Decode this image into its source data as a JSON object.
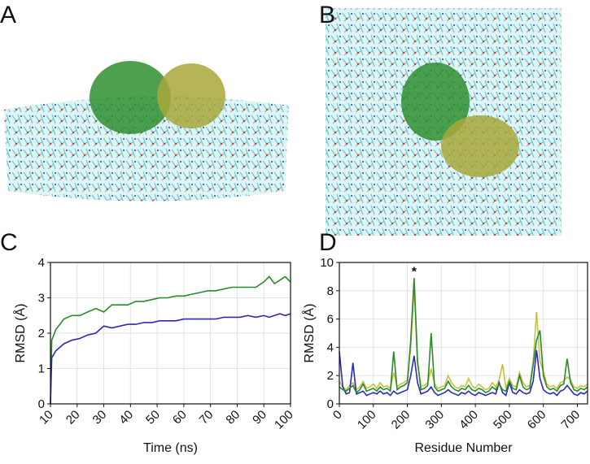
{
  "panel_labels": [
    "A",
    "B",
    "C",
    "D"
  ],
  "chart_data": [
    {
      "type": "line",
      "xlabel": "Time (ns)",
      "ylabel": "RMSD (Å)",
      "xlim": [
        10,
        100
      ],
      "xticks": [
        10,
        20,
        30,
        40,
        50,
        60,
        70,
        80,
        90,
        100
      ],
      "ylim": [
        0,
        4
      ],
      "yticks": [
        0,
        1,
        2,
        3,
        4
      ],
      "grid": true,
      "x": [
        10,
        10.5,
        12,
        15,
        18,
        21,
        24,
        27,
        30,
        33,
        36,
        39,
        42,
        45,
        48,
        51,
        54,
        57,
        60,
        63,
        66,
        69,
        72,
        75,
        78,
        81,
        84,
        87,
        90,
        92,
        94,
        96,
        98,
        100
      ],
      "series": [
        {
          "color": "#2a8a2a",
          "values": [
            0,
            1.8,
            2.1,
            2.4,
            2.5,
            2.5,
            2.6,
            2.7,
            2.6,
            2.8,
            2.8,
            2.8,
            2.9,
            2.9,
            2.95,
            3.0,
            3.0,
            3.05,
            3.05,
            3.1,
            3.15,
            3.2,
            3.2,
            3.25,
            3.3,
            3.3,
            3.3,
            3.3,
            3.45,
            3.6,
            3.4,
            3.5,
            3.6,
            3.45
          ]
        },
        {
          "color": "#2b2bb5",
          "values": [
            0,
            1.3,
            1.5,
            1.7,
            1.8,
            1.85,
            1.95,
            2.0,
            2.2,
            2.15,
            2.2,
            2.25,
            2.25,
            2.3,
            2.3,
            2.35,
            2.35,
            2.35,
            2.4,
            2.4,
            2.4,
            2.4,
            2.4,
            2.45,
            2.45,
            2.45,
            2.5,
            2.45,
            2.5,
            2.45,
            2.5,
            2.55,
            2.5,
            2.55
          ]
        }
      ]
    },
    {
      "type": "line",
      "xlabel": "Residue Number",
      "ylabel": "RMSD (Å)",
      "xlim": [
        0,
        730
      ],
      "xticks": [
        0,
        100,
        200,
        300,
        400,
        500,
        600,
        700
      ],
      "ylim": [
        0,
        10
      ],
      "yticks": [
        0,
        2,
        4,
        6,
        8,
        10
      ],
      "grid": true,
      "annotations": [
        {
          "text": "*",
          "x": 220,
          "y": 9.4
        }
      ],
      "x": [
        0,
        10,
        20,
        30,
        40,
        50,
        60,
        70,
        80,
        90,
        100,
        110,
        120,
        130,
        140,
        150,
        160,
        170,
        180,
        190,
        200,
        210,
        220,
        230,
        240,
        250,
        260,
        270,
        280,
        290,
        300,
        310,
        320,
        330,
        340,
        350,
        360,
        370,
        380,
        390,
        400,
        410,
        420,
        430,
        440,
        450,
        460,
        470,
        480,
        490,
        500,
        510,
        520,
        530,
        540,
        550,
        560,
        570,
        580,
        590,
        600,
        610,
        620,
        630,
        640,
        650,
        660,
        670,
        680,
        690,
        700,
        710,
        720,
        730
      ],
      "series": [
        {
          "color": "#c2c243",
          "values": [
            1.6,
            1.2,
            1.0,
            1.3,
            1.5,
            1.0,
            1.2,
            1.6,
            1.1,
            1.2,
            1.4,
            1.1,
            1.5,
            1.2,
            1.3,
            1.1,
            2.2,
            1.2,
            1.4,
            1.5,
            1.7,
            4.0,
            8.3,
            2.8,
            1.3,
            1.3,
            1.5,
            2.5,
            1.4,
            1.1,
            1.2,
            1.3,
            2.0,
            1.5,
            1.2,
            1.1,
            1.3,
            1.2,
            1.8,
            1.3,
            1.1,
            1.4,
            1.2,
            1.0,
            1.1,
            1.5,
            1.2,
            1.7,
            2.8,
            1.1,
            1.8,
            1.3,
            1.2,
            2.2,
            1.5,
            1.2,
            1.3,
            3.0,
            6.5,
            3.0,
            2.3,
            1.4,
            1.2,
            1.3,
            1.1,
            1.5,
            1.6,
            1.9,
            1.7,
            1.2,
            1.1,
            1.3,
            1.2,
            1.4
          ]
        },
        {
          "color": "#2b2bb5",
          "values": [
            3.7,
            1.2,
            0.7,
            0.8,
            2.9,
            0.7,
            0.8,
            0.9,
            0.6,
            0.7,
            0.8,
            0.7,
            0.9,
            0.7,
            0.8,
            0.6,
            0.9,
            0.7,
            0.8,
            0.9,
            1.0,
            2.0,
            3.4,
            1.5,
            0.7,
            0.8,
            0.9,
            1.2,
            0.8,
            0.6,
            0.7,
            0.8,
            1.0,
            0.8,
            0.7,
            0.6,
            0.8,
            0.7,
            0.9,
            0.7,
            0.6,
            0.8,
            0.7,
            0.6,
            0.7,
            0.8,
            0.7,
            1.5,
            0.8,
            0.6,
            1.5,
            0.8,
            0.7,
            1.0,
            0.8,
            0.7,
            0.8,
            1.6,
            3.8,
            1.8,
            1.0,
            0.8,
            0.7,
            0.8,
            0.6,
            0.9,
            1.0,
            1.3,
            1.0,
            0.7,
            0.6,
            0.8,
            0.7,
            0.9
          ]
        },
        {
          "color": "#2a8a2a",
          "values": [
            1.2,
            1.0,
            0.9,
            1.1,
            1.3,
            0.8,
            1.0,
            1.4,
            0.9,
            1.0,
            1.1,
            0.9,
            1.2,
            1.0,
            1.1,
            0.9,
            3.7,
            1.0,
            1.2,
            1.3,
            1.5,
            4.5,
            8.9,
            3.0,
            1.0,
            1.1,
            1.3,
            5.0,
            1.2,
            0.9,
            1.0,
            1.1,
            1.6,
            1.2,
            1.0,
            0.9,
            1.1,
            1.0,
            1.3,
            1.0,
            0.9,
            1.1,
            1.0,
            0.8,
            0.9,
            1.2,
            1.0,
            1.4,
            1.0,
            0.9,
            1.6,
            1.1,
            1.0,
            2.0,
            1.2,
            1.0,
            1.1,
            2.8,
            4.5,
            5.2,
            2.0,
            1.2,
            1.0,
            1.1,
            0.9,
            1.3,
            1.4,
            3.2,
            1.5,
            1.0,
            0.9,
            1.1,
            1.0,
            1.2
          ]
        }
      ]
    }
  ]
}
